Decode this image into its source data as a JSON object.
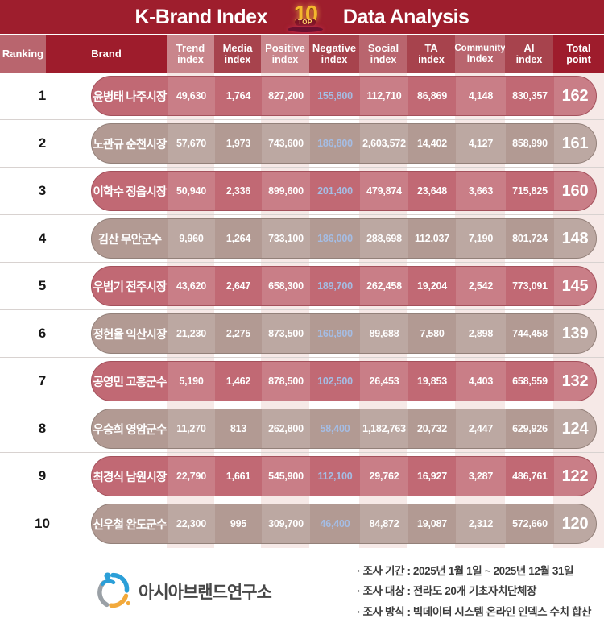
{
  "header": {
    "title_left": "K-Brand Index",
    "title_right": "Data Analysis",
    "badge": {
      "top": "TOP",
      "number": "10"
    }
  },
  "chart_data": {
    "type": "table",
    "title": "K-Brand Index TOP10 Data Analysis",
    "columns": [
      [
        "Ranking"
      ],
      [
        "Brand"
      ],
      [
        "Trend",
        "index"
      ],
      [
        "Media",
        "index"
      ],
      [
        "Positive",
        "index"
      ],
      [
        "Negative",
        "index"
      ],
      [
        "Social",
        "index"
      ],
      [
        "TA",
        "index"
      ],
      [
        "Community",
        "index"
      ],
      [
        "AI",
        "index"
      ],
      [
        "Total",
        "point"
      ]
    ],
    "rows": [
      {
        "rank": "1",
        "brand": "윤병태 나주시장",
        "values": [
          "49,630",
          "1,764",
          "827,200",
          "155,800",
          "112,710",
          "86,869",
          "4,148",
          "830,357"
        ],
        "total": "162"
      },
      {
        "rank": "2",
        "brand": "노관규 순천시장",
        "values": [
          "57,670",
          "1,973",
          "743,600",
          "186,800",
          "2,603,572",
          "14,402",
          "4,127",
          "858,990"
        ],
        "total": "161"
      },
      {
        "rank": "3",
        "brand": "이학수 정읍시장",
        "values": [
          "50,940",
          "2,336",
          "899,600",
          "201,400",
          "479,874",
          "23,648",
          "3,663",
          "715,825"
        ],
        "total": "160"
      },
      {
        "rank": "4",
        "brand": "김산 무안군수",
        "values": [
          "9,960",
          "1,264",
          "733,100",
          "186,000",
          "288,698",
          "112,037",
          "7,190",
          "801,724"
        ],
        "total": "148"
      },
      {
        "rank": "5",
        "brand": "우범기 전주시장",
        "values": [
          "43,620",
          "2,647",
          "658,300",
          "189,700",
          "262,458",
          "19,204",
          "2,542",
          "773,091"
        ],
        "total": "145"
      },
      {
        "rank": "6",
        "brand": "정헌율 익산시장",
        "values": [
          "21,230",
          "2,275",
          "873,500",
          "160,800",
          "89,688",
          "7,580",
          "2,898",
          "744,458"
        ],
        "total": "139"
      },
      {
        "rank": "7",
        "brand": "공영민 고흥군수",
        "values": [
          "5,190",
          "1,462",
          "878,500",
          "102,500",
          "26,453",
          "19,853",
          "4,403",
          "658,559"
        ],
        "total": "132"
      },
      {
        "rank": "8",
        "brand": "우승희 영암군수",
        "values": [
          "11,270",
          "813",
          "262,800",
          "58,400",
          "1,182,763",
          "20,732",
          "2,447",
          "629,926"
        ],
        "total": "124"
      },
      {
        "rank": "9",
        "brand": "최경식 남원시장",
        "values": [
          "22,790",
          "1,661",
          "545,900",
          "112,100",
          "29,762",
          "16,927",
          "3,287",
          "486,761"
        ],
        "total": "122"
      },
      {
        "rank": "10",
        "brand": "신우철 완도군수",
        "values": [
          "22,300",
          "995",
          "309,700",
          "46,400",
          "84,872",
          "19,087",
          "2,312",
          "572,660"
        ],
        "total": "120"
      }
    ]
  },
  "footer": {
    "org": "아시아브랜드연구소",
    "notes": [
      "· 조사 기간 : 2025년 1월 1일 ~ 2025년 12월 31일",
      "· 조사 대상 : 전라도 20개 기초자치단체장",
      "· 조사 방식 : 빅데이터 시스템 온라인 인덱스 수치 합산"
    ]
  },
  "colors": {
    "title_bar": "#9e1e2d",
    "header_darkest": "#9e1c2c",
    "header_dark": "#a7434d",
    "header_medium": "#b9656e",
    "header_light": "#c9868c",
    "pill_rose": "#c16974",
    "pill_taupe": "#b29a93",
    "negative_text": "#a5bde4",
    "stripe": "#f6e9e7",
    "badge_gold": "#f5b72e"
  }
}
